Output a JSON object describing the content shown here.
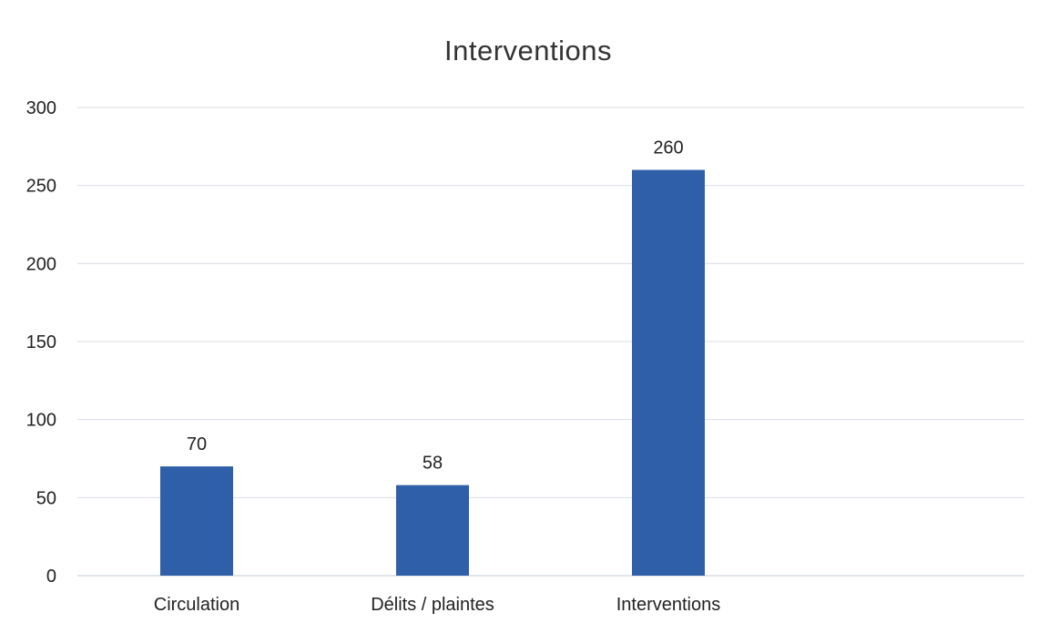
{
  "chart_data": {
    "type": "bar",
    "title": "Interventions",
    "categories": [
      "Circulation",
      "Délits / plaintes",
      "Interventions"
    ],
    "values": [
      70,
      58,
      260
    ],
    "data_labels": [
      "70",
      "58",
      "260"
    ],
    "xlabel": "",
    "ylabel": "",
    "ylim": [
      0,
      300
    ],
    "yticks": [
      0,
      50,
      100,
      150,
      200,
      250,
      300
    ],
    "grid": true,
    "legend": "none",
    "colors": {
      "bar": "#2e5fa8",
      "grid": "#d9dde4",
      "text": "#222222"
    }
  }
}
